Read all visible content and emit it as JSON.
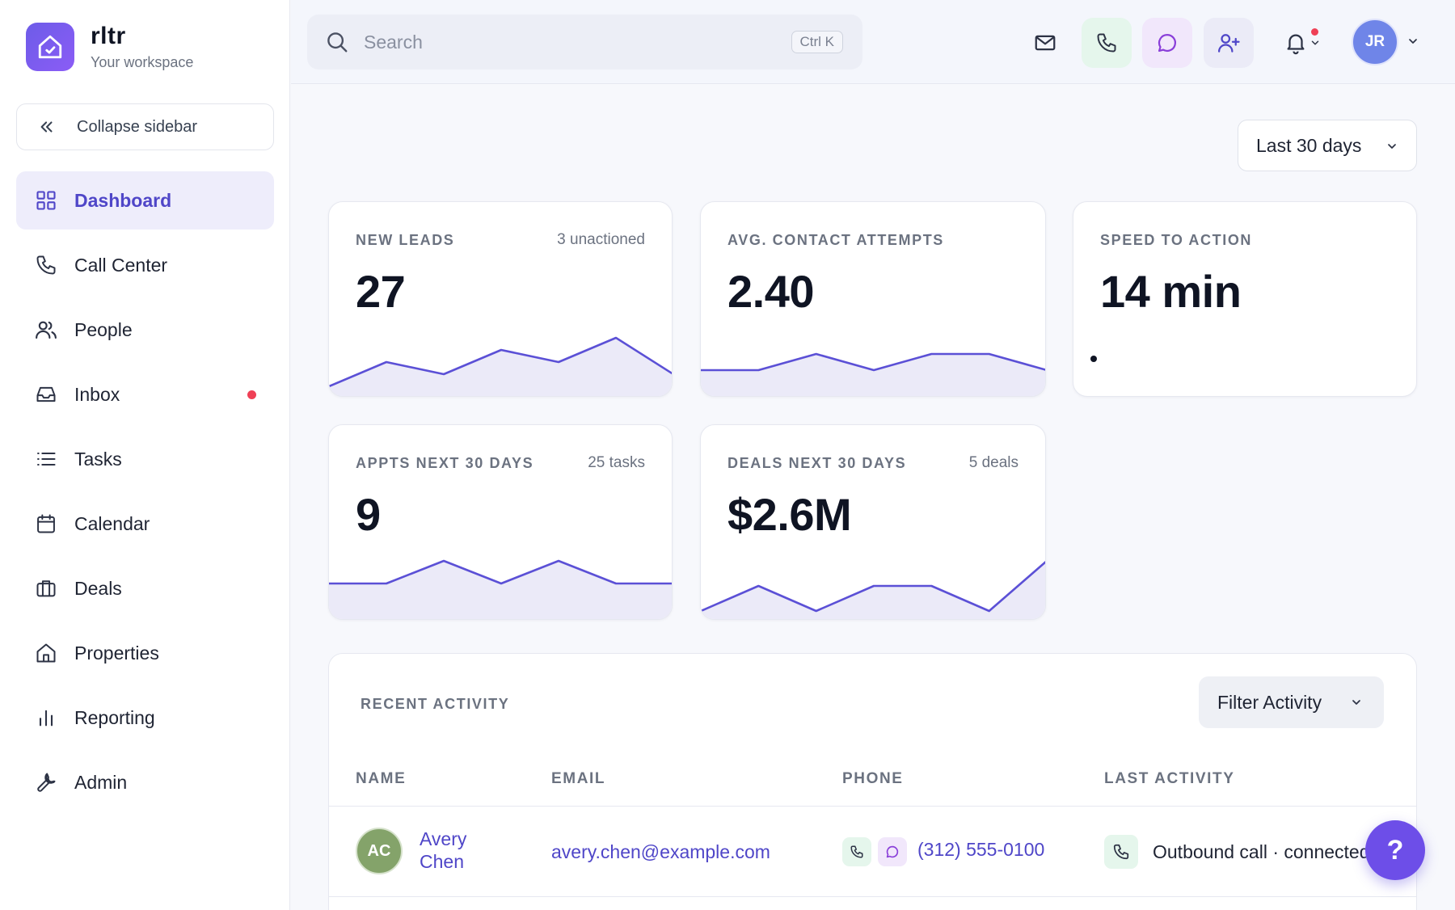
{
  "brand": {
    "name": "rltr",
    "subtitle": "Your workspace"
  },
  "sidebar": {
    "collapse_label": "Collapse sidebar",
    "items": [
      {
        "label": "Dashboard",
        "icon": "grid-icon",
        "active": true
      },
      {
        "label": "Call Center",
        "icon": "phone-icon"
      },
      {
        "label": "People",
        "icon": "people-icon"
      },
      {
        "label": "Inbox",
        "icon": "inbox-icon",
        "badge_dot": true
      },
      {
        "label": "Tasks",
        "icon": "list-icon"
      },
      {
        "label": "Calendar",
        "icon": "calendar-icon"
      },
      {
        "label": "Deals",
        "icon": "briefcase-icon"
      },
      {
        "label": "Properties",
        "icon": "home-icon"
      },
      {
        "label": "Reporting",
        "icon": "bar-chart-icon"
      },
      {
        "label": "Admin",
        "icon": "wrench-icon"
      }
    ]
  },
  "topbar": {
    "search_placeholder": "Search",
    "search_shortcut": "Ctrl K",
    "avatar_initials": "JR"
  },
  "date_range": {
    "label": "Last 30 days"
  },
  "kpis": {
    "new_leads": {
      "label": "NEW LEADS",
      "meta": "3 unactioned",
      "value": "27",
      "trend": [
        2,
        4,
        3,
        5,
        4,
        6,
        3
      ]
    },
    "avg_contact": {
      "label": "AVG. CONTACT ATTEMPTS",
      "meta": "",
      "value": "2.40",
      "trend": [
        2,
        2,
        3,
        2,
        3,
        3,
        2
      ]
    },
    "speed": {
      "label": "SPEED TO ACTION",
      "meta": "",
      "value": "14 min"
    },
    "appts": {
      "label": "APPTS NEXT 30 DAYS",
      "meta": "25 tasks",
      "value": "9",
      "trend": [
        1,
        1,
        2,
        1,
        2,
        1,
        1
      ]
    },
    "deals": {
      "label": "DEALS NEXT 30 DAYS",
      "meta": "5 deals",
      "value": "$2.6M",
      "trend": [
        0,
        1,
        0,
        1,
        1,
        0,
        2
      ]
    }
  },
  "activity": {
    "title": "RECENT ACTIVITY",
    "filter_label": "Filter Activity",
    "columns": {
      "name": "NAME",
      "email": "EMAIL",
      "phone": "PHONE",
      "last": "LAST ACTIVITY"
    },
    "rows": [
      {
        "initials": "AC",
        "name": "Avery Chen",
        "email": "avery.chen@example.com",
        "phone": "(312) 555-0100",
        "last_activity": "Outbound call · connected"
      }
    ]
  },
  "help_label": "?",
  "colors": {
    "accent": "#5b50d6",
    "spark_fill": "#ebeaf8",
    "alert": "#ef4056"
  }
}
